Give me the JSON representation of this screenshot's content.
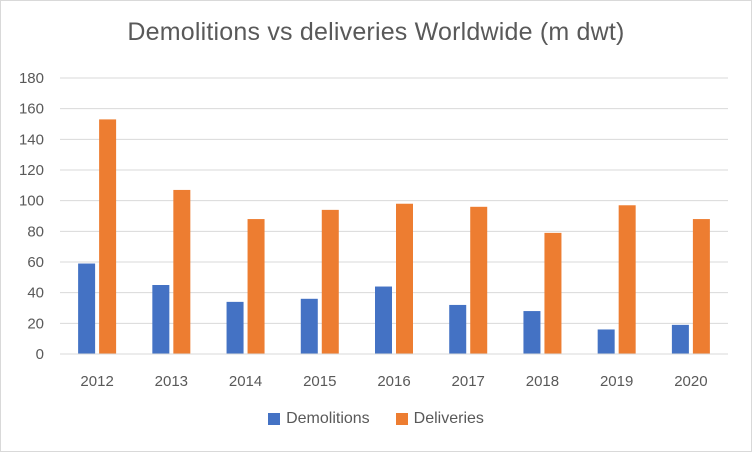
{
  "chart_data": {
    "type": "bar",
    "title": "Demolitions vs deliveries Worldwide (m dwt)",
    "categories": [
      "2012",
      "2013",
      "2014",
      "2015",
      "2016",
      "2017",
      "2018",
      "2019",
      "2020"
    ],
    "series": [
      {
        "name": "Demolitions",
        "color": "#4472c4",
        "values": [
          59,
          45,
          34,
          36,
          44,
          32,
          28,
          16,
          19
        ]
      },
      {
        "name": "Deliveries",
        "color": "#ed7d31",
        "values": [
          153,
          107,
          88,
          94,
          98,
          96,
          79,
          97,
          88
        ]
      }
    ],
    "ylim": [
      0,
      180
    ],
    "yticks": [
      0,
      20,
      40,
      60,
      80,
      100,
      120,
      140,
      160,
      180
    ],
    "grid": true,
    "legend_position": "bottom"
  }
}
